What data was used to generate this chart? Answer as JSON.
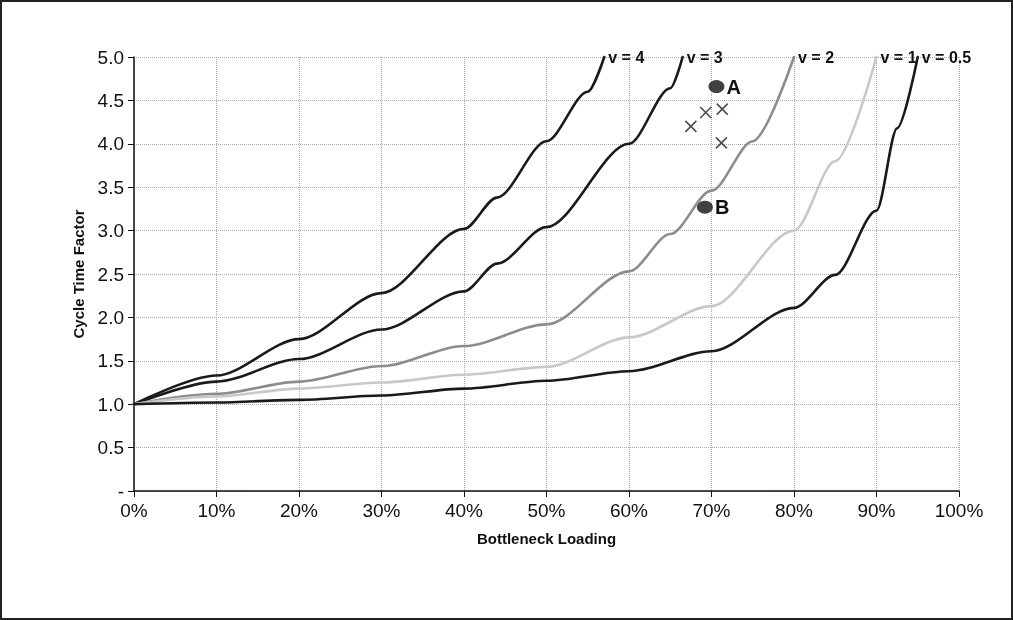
{
  "chart_data": {
    "type": "line",
    "xlabel": "Bottleneck Loading",
    "ylabel": "Cycle Time Factor",
    "xlim": [
      0,
      1
    ],
    "ylim": [
      0,
      5
    ],
    "xticks": [
      {
        "value": 0,
        "label": "0%"
      },
      {
        "value": 0.1,
        "label": "10%"
      },
      {
        "value": 0.2,
        "label": "20%"
      },
      {
        "value": 0.3,
        "label": "30%"
      },
      {
        "value": 0.4,
        "label": "40%"
      },
      {
        "value": 0.5,
        "label": "50%"
      },
      {
        "value": 0.6,
        "label": "60%"
      },
      {
        "value": 0.7,
        "label": "70%"
      },
      {
        "value": 0.8,
        "label": "80%"
      },
      {
        "value": 0.9,
        "label": "90%"
      },
      {
        "value": 1,
        "label": "100%"
      }
    ],
    "yticks": [
      {
        "value": 0,
        "label": "-"
      },
      {
        "value": 0.5,
        "label": "0.5"
      },
      {
        "value": 1,
        "label": "1.0"
      },
      {
        "value": 1.5,
        "label": "1.5"
      },
      {
        "value": 2,
        "label": "2.0"
      },
      {
        "value": 2.5,
        "label": "2.5"
      },
      {
        "value": 3,
        "label": "3.0"
      },
      {
        "value": 3.5,
        "label": "3.5"
      },
      {
        "value": 4,
        "label": "4.0"
      },
      {
        "value": 4.5,
        "label": "4.5"
      },
      {
        "value": 5,
        "label": "5.0"
      }
    ],
    "grid": true,
    "legend": false,
    "marker": "none",
    "line_style": "solid",
    "series": [
      {
        "name": "v = 4",
        "color": "#1a1a1a",
        "x": [
          0,
          0.1,
          0.2,
          0.3,
          0.4,
          0.44,
          0.5,
          0.55,
          0.57
        ],
        "values": [
          1.0,
          1.33,
          1.75,
          2.28,
          3.02,
          3.38,
          4.03,
          4.6,
          5.0
        ]
      },
      {
        "name": "v = 3",
        "color": "#1a1a1a",
        "x": [
          0,
          0.1,
          0.2,
          0.3,
          0.4,
          0.44,
          0.5,
          0.6,
          0.65,
          0.665
        ],
        "values": [
          1.0,
          1.26,
          1.52,
          1.86,
          2.3,
          2.62,
          3.04,
          4.0,
          4.64,
          5.0
        ]
      },
      {
        "name": "v = 2",
        "color": "#8c8c8c",
        "x": [
          0,
          0.1,
          0.2,
          0.3,
          0.4,
          0.5,
          0.6,
          0.65,
          0.7,
          0.75,
          0.8
        ],
        "values": [
          1.0,
          1.12,
          1.26,
          1.44,
          1.67,
          1.92,
          2.53,
          2.96,
          3.46,
          4.03,
          5.0
        ]
      },
      {
        "name": "v = 1",
        "color": "#c8c8c8",
        "x": [
          0,
          0.1,
          0.2,
          0.3,
          0.4,
          0.5,
          0.6,
          0.7,
          0.8,
          0.85,
          0.9
        ],
        "values": [
          1.0,
          1.09,
          1.18,
          1.25,
          1.34,
          1.43,
          1.77,
          2.13,
          3.0,
          3.8,
          5.0
        ]
      },
      {
        "name": "v = 0.5",
        "color": "#1a1a1a",
        "x": [
          0,
          0.1,
          0.2,
          0.3,
          0.4,
          0.5,
          0.6,
          0.7,
          0.8,
          0.85,
          0.9,
          0.925,
          0.95
        ],
        "values": [
          1.0,
          1.02,
          1.05,
          1.1,
          1.18,
          1.27,
          1.38,
          1.61,
          2.11,
          2.49,
          3.23,
          4.18,
          5.0
        ]
      },
      {
        "type": "scatter",
        "marker": "circle",
        "color": "#111111",
        "x": [
          0.706,
          0.692
        ],
        "values": [
          4.66,
          3.27
        ]
      },
      {
        "type": "scatter",
        "marker": "cross",
        "color": "#222222",
        "x": [
          0.675,
          0.693,
          0.713,
          0.712
        ],
        "values": [
          4.2,
          4.36,
          4.4,
          4.01
        ]
      }
    ],
    "annotations": [
      {
        "text": "A",
        "x": 0.706,
        "y": 4.66
      },
      {
        "text": "B",
        "x": 0.692,
        "y": 3.27
      }
    ]
  }
}
